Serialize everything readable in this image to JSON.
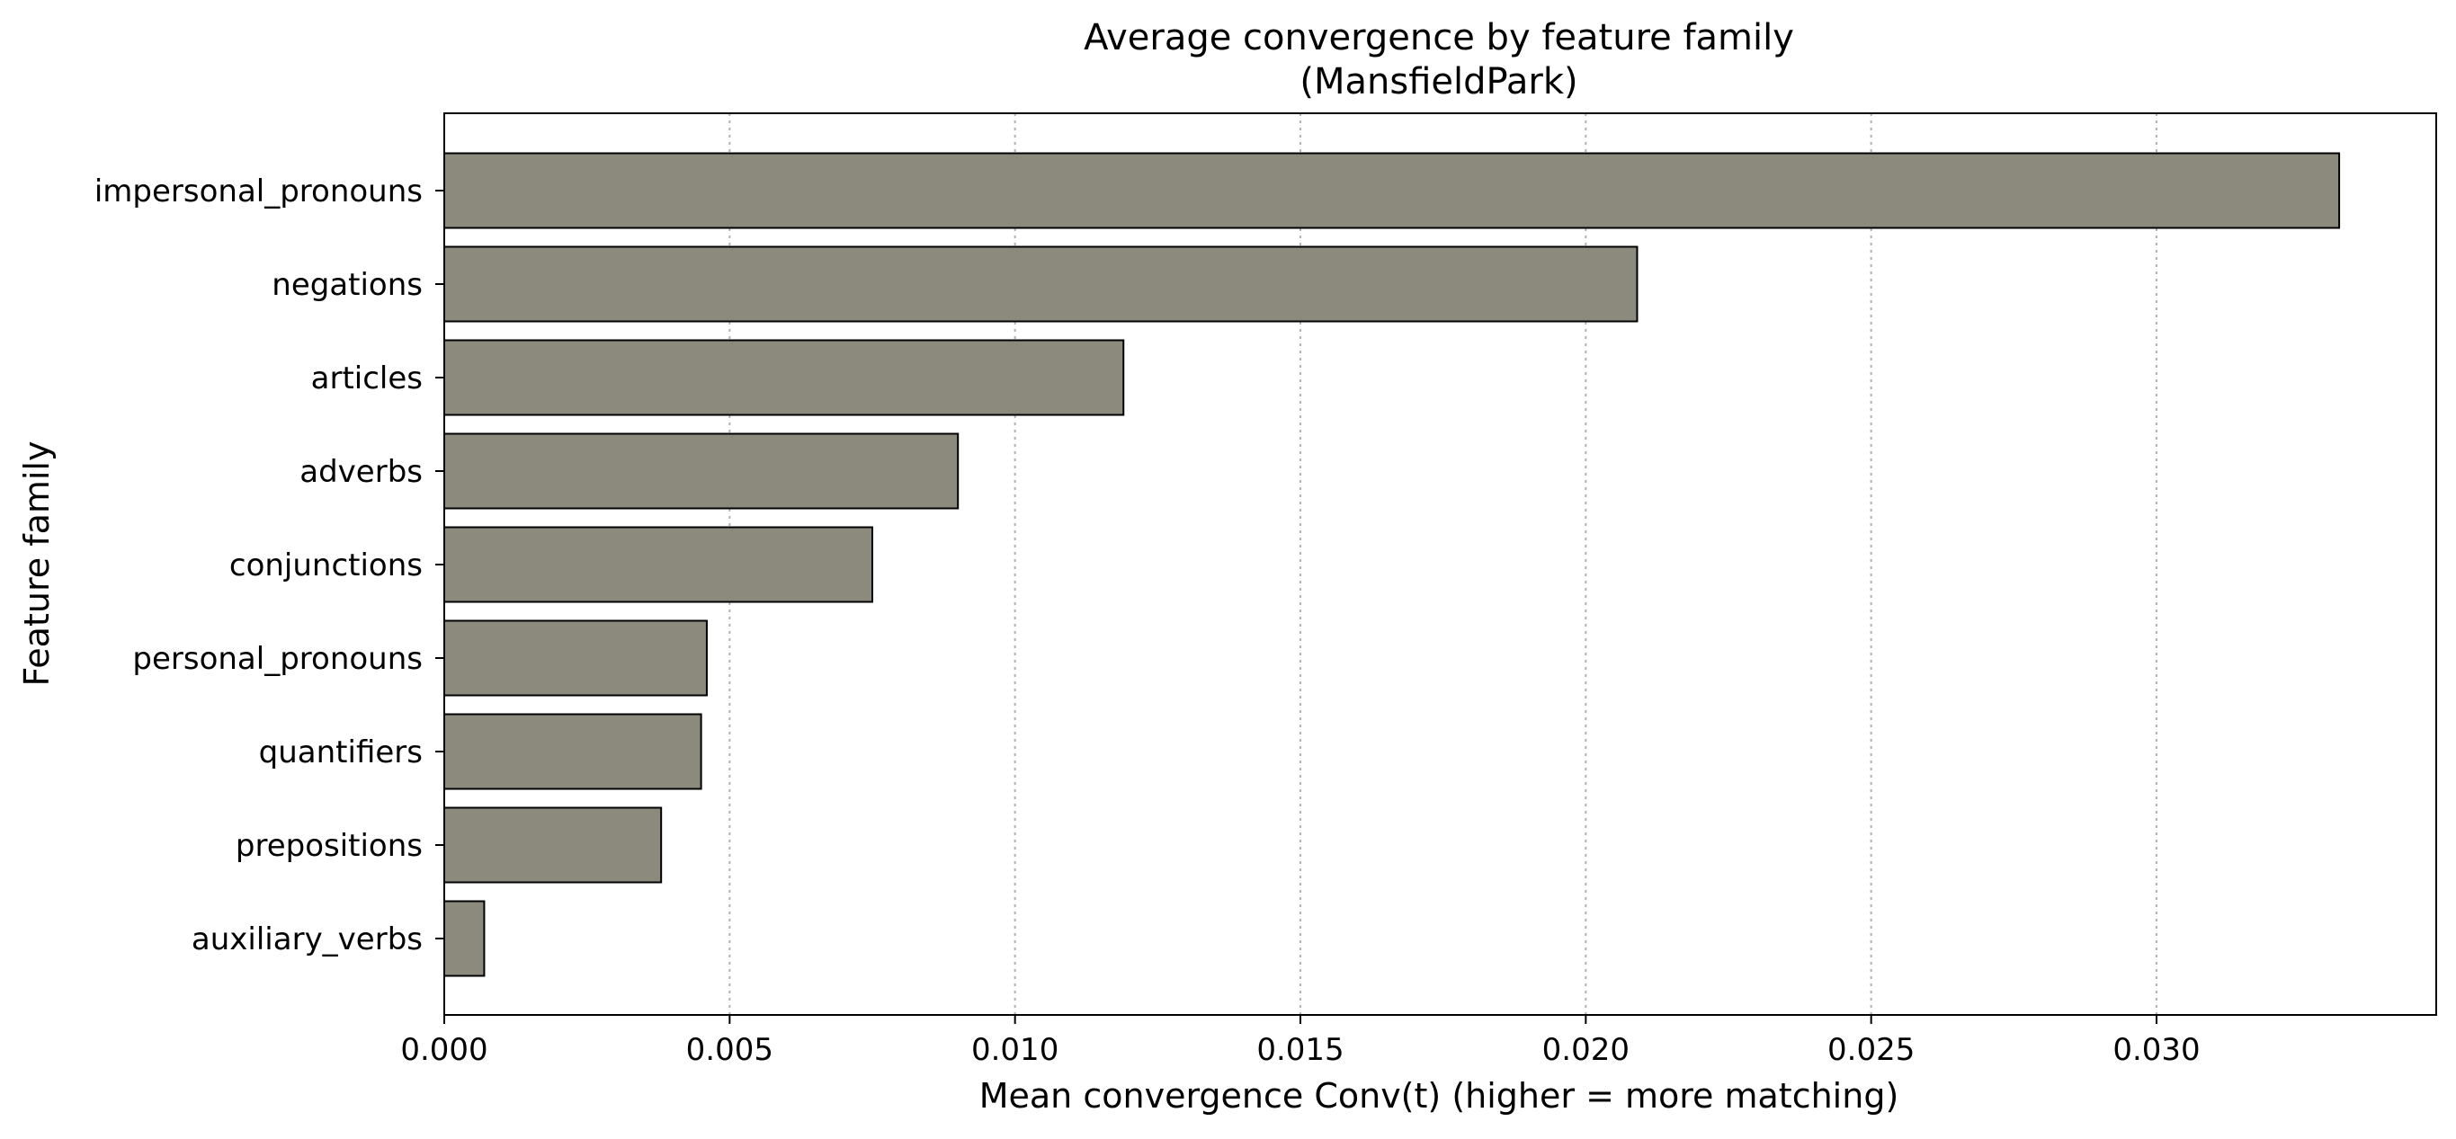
{
  "chart_data": {
    "type": "bar",
    "orientation": "horizontal",
    "title": "Average convergence by feature family",
    "subtitle": "(MansfieldPark)",
    "xlabel": "Mean convergence Conv(t) (higher = more matching)",
    "ylabel": "Feature family",
    "categories": [
      "impersonal_pronouns",
      "negations",
      "articles",
      "adverbs",
      "conjunctions",
      "personal_pronouns",
      "quantifiers",
      "prepositions",
      "auxiliary_verbs"
    ],
    "values": [
      0.0332,
      0.0209,
      0.0119,
      0.009,
      0.0075,
      0.0046,
      0.0045,
      0.0038,
      0.0007
    ],
    "xlim": [
      0,
      0.0349
    ],
    "xticks": [
      0.0,
      0.005,
      0.01,
      0.015,
      0.02,
      0.025,
      0.03
    ],
    "xtick_labels": [
      "0.000",
      "0.005",
      "0.010",
      "0.015",
      "0.020",
      "0.025",
      "0.030"
    ],
    "grid": "x-dotted",
    "bar_color": "#8c8a7d",
    "bar_edge_color": "#000000"
  }
}
